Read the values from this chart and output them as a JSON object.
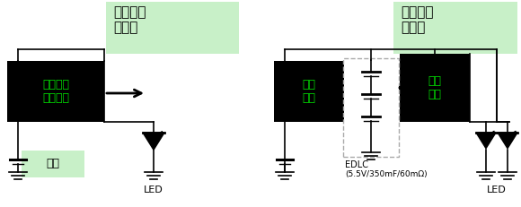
{
  "bg_color": "#ffffff",
  "light_green": "#c8f0c8",
  "dark_green": "#00dd00",
  "black": "#000000",
  "gray": "#aaaaaa",
  "fig_width": 5.8,
  "fig_height": 2.31,
  "label_no_current": "无法通过\n大电流",
  "label_yes_current": "可以通过\n大电流",
  "box1_line1": "升压电路",
  "box1_line2": "电流控制",
  "box2_line1": "升压",
  "box2_line2": "电路",
  "box3_line1": "电流",
  "box3_line2": "控制",
  "battery_label": "电池",
  "led_label": "LED",
  "edlc_line1": "EDLC",
  "edlc_line2": "(5.5V/350mF/60mΩ)"
}
